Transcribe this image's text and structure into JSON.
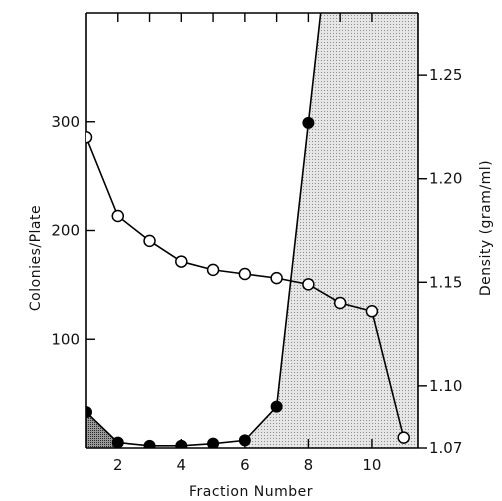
{
  "chart_data": {
    "type": "line",
    "xlabel": "Fraction Number",
    "ylabel_left": "Colonies/Plate",
    "ylabel_right": "Density (gram/ml)",
    "x_ticks": [
      2,
      4,
      6,
      8,
      10
    ],
    "x_tick_labels": [
      "2",
      "4",
      "6",
      "8",
      "10"
    ],
    "xlim": [
      1,
      11.45
    ],
    "y_left_ticks": [
      100,
      200,
      300
    ],
    "y_left_tick_labels": [
      "100",
      "200",
      "300"
    ],
    "ylim_left": [
      0,
      400
    ],
    "y_right_ticks": [
      1.07,
      1.1,
      1.15,
      1.2,
      1.25
    ],
    "y_right_tick_labels": [
      "1.07",
      "1.10",
      "1.15",
      "1.20",
      "1.25"
    ],
    "ylim_right": [
      1.07,
      1.28
    ],
    "series": [
      {
        "marker": "filled-circle",
        "axis": "left",
        "x": [
          1,
          2,
          3,
          4,
          5,
          6,
          7,
          8
        ],
        "y": [
          33,
          5,
          2,
          2,
          4,
          7,
          38,
          299
        ]
      },
      {
        "marker": "open-circle",
        "axis": "right",
        "x": [
          1,
          2,
          3,
          4,
          5,
          6,
          7,
          8,
          9,
          10,
          11
        ],
        "y": [
          1.22,
          1.182,
          1.17,
          1.16,
          1.156,
          1.154,
          1.152,
          1.149,
          1.14,
          1.136,
          1.075
        ]
      }
    ],
    "grid": false,
    "legend": "none"
  }
}
